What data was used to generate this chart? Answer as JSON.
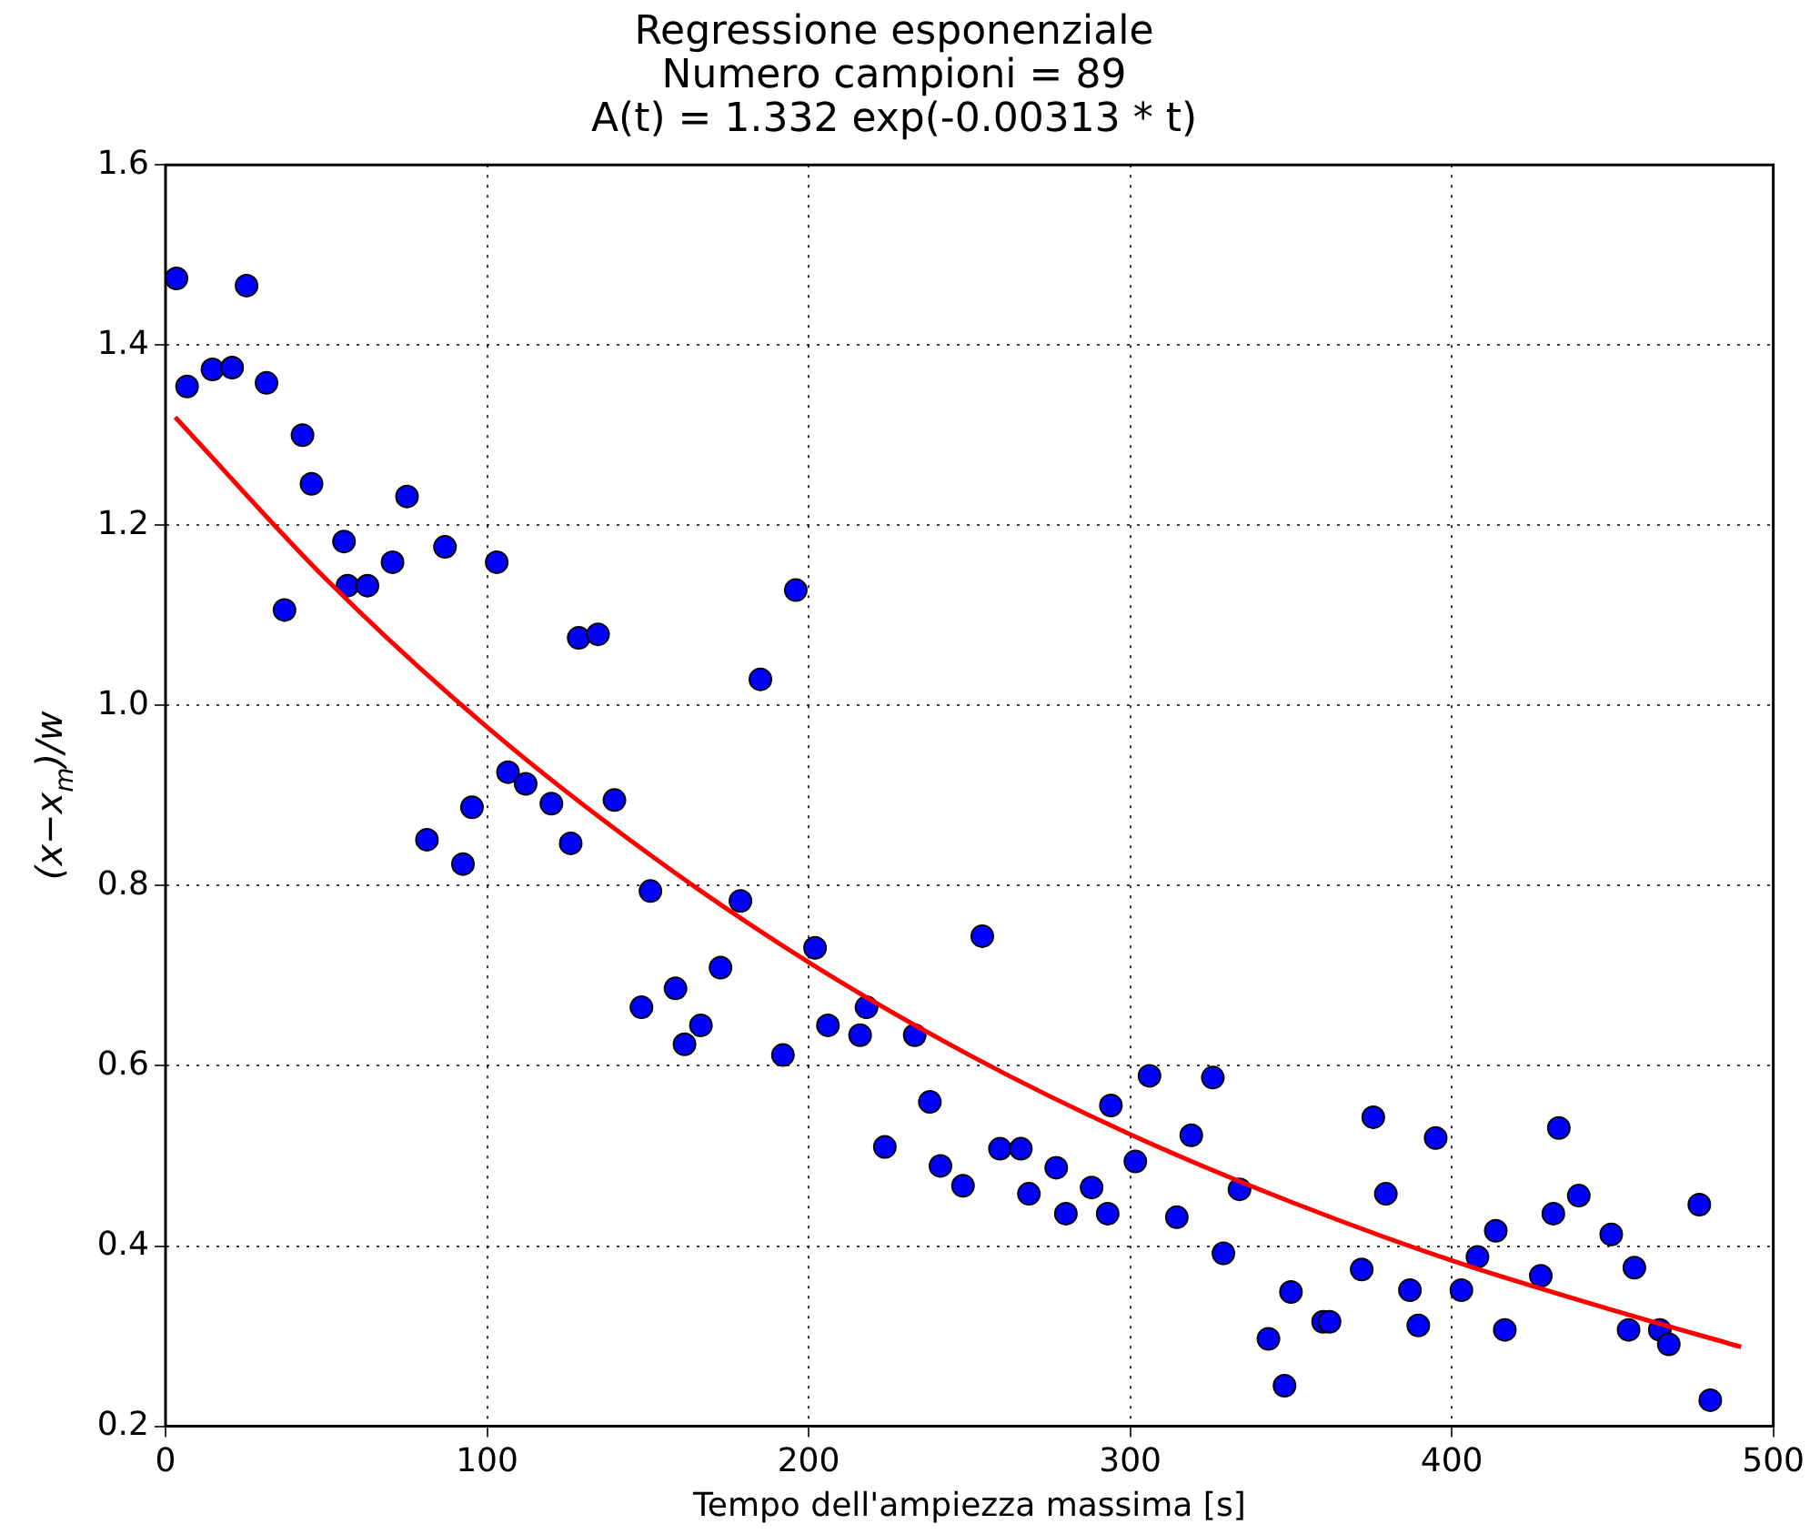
{
  "chart_data": {
    "type": "scatter",
    "title": "Regressione esponenziale",
    "subtitle": "Numero campioni = 89\nA(t) = 1.332 exp(-0.00313 * t)",
    "xlabel": "Tempo dell'ampiezza massima [s]",
    "ylabel": "(x−x$_{m}$)/w",
    "xlim": [
      0,
      500
    ],
    "ylim": [
      0.2,
      1.6
    ],
    "xticks": [
      0,
      100,
      200,
      300,
      400,
      500
    ],
    "yticks": [
      0.2,
      0.4,
      0.6,
      0.8,
      {
        "value": 1,
        "label": "1.0"
      },
      1.2,
      1.4,
      1.6
    ],
    "grid": true,
    "marker": "circle",
    "line_style": "solid",
    "series": [
      {
        "color": "#0000ff",
        "x": [
          3.4,
          6.7,
          14.6,
          20.7,
          25.2,
          31.4,
          37,
          42.6,
          45.4,
          55.5,
          56.6,
          62.8,
          70.6,
          75.1,
          81.3,
          86.9,
          92.5,
          95.3,
          103,
          106.5,
          112,
          120,
          126,
          128.5,
          134.5,
          139.6,
          148,
          150.8,
          158.6,
          161.4,
          166.5,
          172.6,
          178.8,
          185,
          192,
          196,
          202,
          206,
          216,
          218,
          223.7,
          233,
          237.7,
          241,
          248,
          254,
          259.5,
          266,
          268.5,
          277,
          280,
          288,
          293,
          294,
          301.6,
          306,
          314.5,
          319,
          325.7,
          329,
          334,
          343,
          348,
          350,
          360,
          362,
          372,
          375.6,
          379.5,
          387,
          389.6,
          395,
          403,
          408,
          413.7,
          416.5,
          427.7,
          431.6,
          433.3,
          439.5,
          449.6,
          455,
          456.8,
          464.7,
          467.5,
          477,
          480.4
        ],
        "values": [
          1.474,
          1.354,
          1.373,
          1.375,
          1.466,
          1.358,
          1.106,
          1.3,
          1.246,
          1.182,
          1.133,
          1.133,
          1.159,
          1.232,
          0.851,
          1.176,
          0.824,
          0.887,
          1.159,
          0.926,
          0.913,
          0.891,
          0.847,
          1.075,
          1.079,
          0.895,
          0.665,
          0.794,
          0.686,
          0.624,
          0.645,
          0.709,
          0.783,
          1.029,
          0.612,
          1.128,
          0.731,
          0.645,
          0.634,
          0.665,
          0.51,
          0.634,
          0.56,
          0.489,
          0.467,
          0.744,
          0.508,
          0.508,
          0.458,
          0.487,
          0.436,
          0.465,
          0.436,
          0.556,
          0.494,
          0.589,
          0.432,
          0.523,
          0.587,
          0.392,
          0.463,
          0.297,
          0.245,
          0.349,
          0.316,
          0.316,
          0.374,
          0.543,
          0.458,
          0.351,
          0.312,
          0.52,
          0.351,
          0.388,
          0.417,
          0.307,
          0.367,
          0.436,
          0.531,
          0.456,
          0.413,
          0.307,
          0.376,
          0.307,
          0.291,
          0.446,
          0.229
        ]
      },
      {
        "type": "line",
        "marker": "none",
        "color": "#ff0000",
        "x": [
          3,
          50,
          100,
          150,
          200,
          250,
          300,
          350,
          400,
          450,
          490
        ],
        "values": [
          1.32,
          1.14,
          0.976,
          0.836,
          0.715,
          0.612,
          0.524,
          0.449,
          0.384,
          0.329,
          0.288
        ]
      }
    ]
  }
}
